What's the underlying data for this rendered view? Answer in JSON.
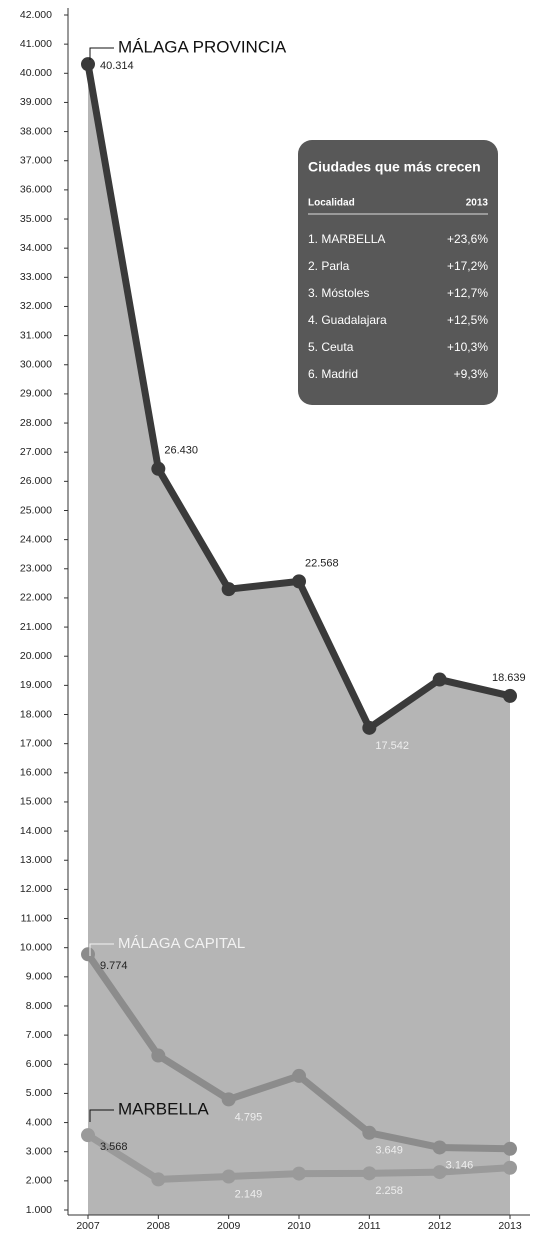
{
  "chart_data": {
    "type": "line",
    "categories": [
      "2007",
      "2008",
      "2009",
      "2010",
      "2011",
      "2012",
      "2013"
    ],
    "series": [
      {
        "name": "MÁLAGA PROVINCIA",
        "color": "#3a3a3a",
        "area_color": "#b5b5b5",
        "values": [
          40314,
          26430,
          22300,
          22568,
          17542,
          19200,
          18639
        ],
        "value_labels": [
          "40.314",
          "26.430",
          null,
          "22.568",
          "17.542",
          null,
          "18.639"
        ]
      },
      {
        "name": "MÁLAGA CAPITAL",
        "color": "#8c8c8c",
        "values": [
          9774,
          6300,
          4795,
          5600,
          3649,
          3146,
          3100
        ],
        "value_labels": [
          "9.774",
          null,
          "4.795",
          null,
          "3.649",
          "3.146",
          null
        ]
      },
      {
        "name": "MARBELLA",
        "color": "#9a9a9a",
        "values": [
          3568,
          2050,
          2149,
          2250,
          2258,
          2300,
          2450
        ],
        "value_labels": [
          "3.568",
          null,
          "2.149",
          null,
          "2.258",
          null,
          null
        ]
      }
    ],
    "ylim": [
      1000,
      42000
    ],
    "yticks": [
      {
        "value": 1000,
        "label": "1.000"
      },
      {
        "value": 2000,
        "label": "2.000"
      },
      {
        "value": 3000,
        "label": "3.000"
      },
      {
        "value": 4000,
        "label": "4.000"
      },
      {
        "value": 5000,
        "label": "5.000"
      },
      {
        "value": 6000,
        "label": "6.000"
      },
      {
        "value": 7000,
        "label": "7.000"
      },
      {
        "value": 8000,
        "label": "8.000"
      },
      {
        "value": 9000,
        "label": "9.000"
      },
      {
        "value": 10000,
        "label": "10.000"
      },
      {
        "value": 11000,
        "label": "11.000"
      },
      {
        "value": 12000,
        "label": "12.000"
      },
      {
        "value": 13000,
        "label": "13.000"
      },
      {
        "value": 14000,
        "label": "14.000"
      },
      {
        "value": 15000,
        "label": "15.000"
      },
      {
        "value": 16000,
        "label": "16.000"
      },
      {
        "value": 17000,
        "label": "17.000"
      },
      {
        "value": 18000,
        "label": "18.000"
      },
      {
        "value": 19000,
        "label": "19.000"
      },
      {
        "value": 20000,
        "label": "20.000"
      },
      {
        "value": 21000,
        "label": "21.000"
      },
      {
        "value": 22000,
        "label": "22.000"
      },
      {
        "value": 23000,
        "label": "23.000"
      },
      {
        "value": 24000,
        "label": "24.000"
      },
      {
        "value": 25000,
        "label": "25.000"
      },
      {
        "value": 26000,
        "label": "26.000"
      },
      {
        "value": 27000,
        "label": "27.000"
      },
      {
        "value": 28000,
        "label": "28.000"
      },
      {
        "value": 29000,
        "label": "29.000"
      },
      {
        "value": 30000,
        "label": "30.000"
      },
      {
        "value": 31000,
        "label": "31.000"
      },
      {
        "value": 32000,
        "label": "32.000"
      },
      {
        "value": 33000,
        "label": "33.000"
      },
      {
        "value": 34000,
        "label": "34.000"
      },
      {
        "value": 35000,
        "label": "35.000"
      },
      {
        "value": 36000,
        "label": "36.000"
      },
      {
        "value": 37000,
        "label": "37.000"
      },
      {
        "value": 38000,
        "label": "38.000"
      },
      {
        "value": 39000,
        "label": "39.000"
      },
      {
        "value": 40000,
        "label": "40.000"
      },
      {
        "value": 41000,
        "label": "41.000"
      },
      {
        "value": 42000,
        "label": "42.000"
      }
    ],
    "grid": false
  },
  "table": {
    "title": "Ciudades que más crecen",
    "headers": [
      "Localidad",
      "2013"
    ],
    "rows": [
      [
        "1. MARBELLA",
        "+23,6%"
      ],
      [
        "2. Parla",
        "+17,2%"
      ],
      [
        "3. Móstoles",
        "+12,7%"
      ],
      [
        "4. Guadalajara",
        "+12,5%"
      ],
      [
        "5. Ceuta",
        "+10,3%"
      ],
      [
        "6. Madrid",
        "+9,3%"
      ]
    ]
  }
}
